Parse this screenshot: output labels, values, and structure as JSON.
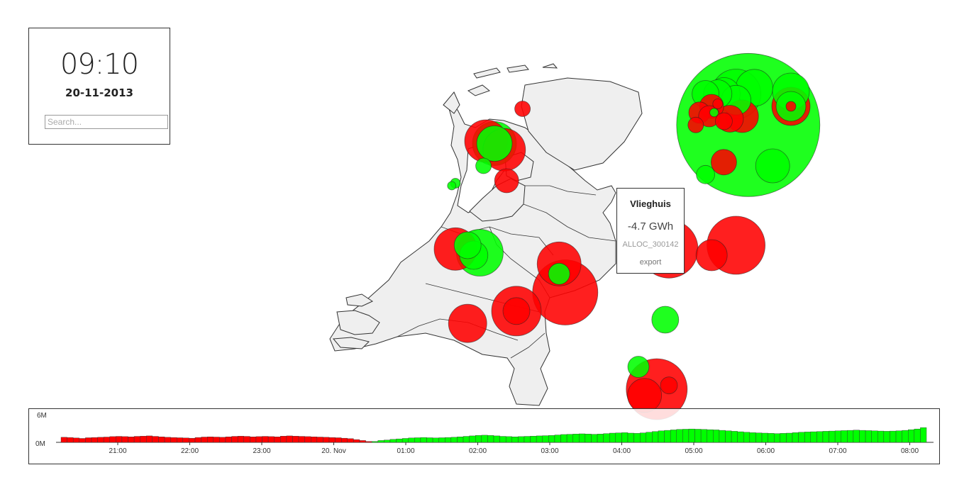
{
  "clock": {
    "time": "09:10",
    "date": "20-11-2013"
  },
  "search": {
    "placeholder": "Search...",
    "value": ""
  },
  "tooltip": {
    "name": "Vlieghuis",
    "value": "-4.7 GWh",
    "id": "ALLOC_300142",
    "direction": "export"
  },
  "colors": {
    "import": "#ff0000",
    "export": "#00ff00",
    "land": "#efefef",
    "border": "#333333"
  },
  "chart_data": {
    "type": "bar",
    "y_ticks": [
      "6M",
      "0M"
    ],
    "ylim": [
      0,
      6000000
    ],
    "x_tick_labels": [
      "21:00",
      "22:00",
      "23:00",
      "20. Nov",
      "01:00",
      "02:00",
      "03:00",
      "04:00",
      "05:00",
      "06:00",
      "07:00",
      "08:00"
    ],
    "values": [
      1.1,
      1.05,
      0.95,
      0.85,
      1.0,
      1.05,
      1.1,
      1.15,
      1.25,
      1.3,
      1.25,
      1.2,
      1.3,
      1.35,
      1.4,
      1.3,
      1.2,
      1.1,
      1.05,
      1.0,
      0.95,
      0.9,
      1.05,
      1.15,
      1.2,
      1.15,
      1.1,
      1.2,
      1.3,
      1.35,
      1.3,
      1.2,
      1.25,
      1.3,
      1.25,
      1.2,
      1.35,
      1.4,
      1.35,
      1.3,
      1.25,
      1.2,
      1.15,
      1.1,
      1.05,
      1.0,
      0.9,
      0.8,
      0.6,
      0.4,
      0.2,
      0.2,
      0.4,
      0.5,
      0.65,
      0.75,
      0.85,
      0.95,
      1.0,
      1.05,
      1.0,
      0.95,
      1.0,
      1.05,
      1.1,
      1.2,
      1.3,
      1.4,
      1.5,
      1.55,
      1.5,
      1.4,
      1.3,
      1.25,
      1.2,
      1.25,
      1.3,
      1.35,
      1.4,
      1.45,
      1.5,
      1.6,
      1.7,
      1.75,
      1.8,
      1.85,
      1.8,
      1.75,
      1.8,
      1.9,
      2.0,
      2.05,
      2.1,
      2.0,
      1.95,
      2.05,
      2.2,
      2.35,
      2.5,
      2.6,
      2.7,
      2.8,
      2.85,
      2.9,
      2.85,
      2.8,
      2.75,
      2.7,
      2.6,
      2.5,
      2.4,
      2.3,
      2.2,
      2.1,
      2.05,
      2.0,
      1.95,
      1.9,
      1.95,
      2.0,
      2.1,
      2.2,
      2.25,
      2.3,
      2.35,
      2.4,
      2.45,
      2.5,
      2.55,
      2.6,
      2.65,
      2.6,
      2.55,
      2.5,
      2.45,
      2.4,
      2.45,
      2.5,
      2.6,
      2.75,
      2.9,
      3.2
    ],
    "negative_count": 51
  },
  "map_bubbles": [
    {
      "lat": 53.05,
      "lon": 6.7,
      "r": 101,
      "type": "export"
    },
    {
      "lat": 53.35,
      "lon": 6.75,
      "r": 26,
      "type": "export"
    },
    {
      "lat": 53.3,
      "lon": 6.6,
      "r": 35,
      "type": "export"
    },
    {
      "lat": 53.3,
      "lon": 6.5,
      "r": 23,
      "type": "export"
    },
    {
      "lat": 53.3,
      "lon": 6.45,
      "r": 20,
      "type": "export"
    },
    {
      "lat": 53.3,
      "lon": 6.35,
      "r": 19,
      "type": "export"
    },
    {
      "lat": 53.25,
      "lon": 6.6,
      "r": 21,
      "type": "export"
    },
    {
      "lat": 53.32,
      "lon": 7.05,
      "r": 26,
      "type": "export"
    },
    {
      "lat": 53.2,
      "lon": 6.4,
      "r": 17,
      "type": "import"
    },
    {
      "lat": 53.22,
      "lon": 6.45,
      "r": 7,
      "type": "import"
    },
    {
      "lat": 53.15,
      "lon": 6.3,
      "r": 15,
      "type": "import"
    },
    {
      "lat": 53.12,
      "lon": 6.38,
      "r": 15,
      "type": "import"
    },
    {
      "lat": 53.15,
      "lon": 6.42,
      "r": 6,
      "type": "export"
    },
    {
      "lat": 53.1,
      "lon": 6.55,
      "r": 19,
      "type": "import"
    },
    {
      "lat": 53.12,
      "lon": 6.65,
      "r": 23,
      "type": "import"
    },
    {
      "lat": 53.08,
      "lon": 6.5,
      "r": 12,
      "type": "import"
    },
    {
      "lat": 53.05,
      "lon": 6.27,
      "r": 11,
      "type": "import"
    },
    {
      "lat": 53.2,
      "lon": 7.05,
      "r": 27,
      "type": "import"
    },
    {
      "lat": 53.2,
      "lon": 7.05,
      "r": 21,
      "type": "export"
    },
    {
      "lat": 53.2,
      "lon": 7.05,
      "r": 7,
      "type": "import"
    },
    {
      "lat": 53.18,
      "lon": 4.85,
      "r": 11,
      "type": "import"
    },
    {
      "lat": 52.75,
      "lon": 6.5,
      "r": 18,
      "type": "import"
    },
    {
      "lat": 52.72,
      "lon": 6.9,
      "r": 24,
      "type": "export"
    },
    {
      "lat": 52.65,
      "lon": 6.35,
      "r": 13,
      "type": "export"
    },
    {
      "lat": 52.92,
      "lon": 4.55,
      "r": 30,
      "type": "import"
    },
    {
      "lat": 52.85,
      "lon": 4.7,
      "r": 30,
      "type": "import"
    },
    {
      "lat": 52.9,
      "lon": 4.62,
      "r": 31,
      "type": "export"
    },
    {
      "lat": 52.9,
      "lon": 4.62,
      "r": 25,
      "type": "export"
    },
    {
      "lat": 52.72,
      "lon": 4.53,
      "r": 11,
      "type": "export"
    },
    {
      "lat": 52.6,
      "lon": 4.72,
      "r": 17,
      "type": "import"
    },
    {
      "lat": 52.58,
      "lon": 4.3,
      "r": 7,
      "type": "export"
    },
    {
      "lat": 52.56,
      "lon": 4.27,
      "r": 6,
      "type": "export"
    },
    {
      "lat": 52.05,
      "lon": 4.3,
      "r": 30,
      "type": "import"
    },
    {
      "lat": 52.08,
      "lon": 4.4,
      "r": 19,
      "type": "export"
    },
    {
      "lat": 52.02,
      "lon": 4.5,
      "r": 33,
      "type": "export"
    },
    {
      "lat": 52.0,
      "lon": 4.45,
      "r": 20,
      "type": "export"
    },
    {
      "lat": 51.93,
      "lon": 5.15,
      "r": 31,
      "type": "import"
    },
    {
      "lat": 51.85,
      "lon": 5.15,
      "r": 15,
      "type": "export"
    },
    {
      "lat": 51.7,
      "lon": 5.2,
      "r": 46,
      "type": "import"
    },
    {
      "lat": 52.05,
      "lon": 6.05,
      "r": 41,
      "type": "import"
    },
    {
      "lat": 52.08,
      "lon": 6.6,
      "r": 41,
      "type": "import"
    },
    {
      "lat": 52.0,
      "lon": 6.4,
      "r": 22,
      "type": "import"
    },
    {
      "lat": 51.55,
      "lon": 4.8,
      "r": 35,
      "type": "import"
    },
    {
      "lat": 51.55,
      "lon": 4.8,
      "r": 19,
      "type": "import"
    },
    {
      "lat": 51.45,
      "lon": 4.4,
      "r": 27,
      "type": "import"
    },
    {
      "lat": 51.48,
      "lon": 6.02,
      "r": 19,
      "type": "export"
    },
    {
      "lat": 51.1,
      "lon": 5.8,
      "r": 15,
      "type": "export"
    },
    {
      "lat": 50.92,
      "lon": 5.95,
      "r": 43,
      "type": "import"
    },
    {
      "lat": 50.95,
      "lon": 6.05,
      "r": 12,
      "type": "import"
    },
    {
      "lat": 50.87,
      "lon": 5.85,
      "r": 24,
      "type": "import"
    }
  ]
}
